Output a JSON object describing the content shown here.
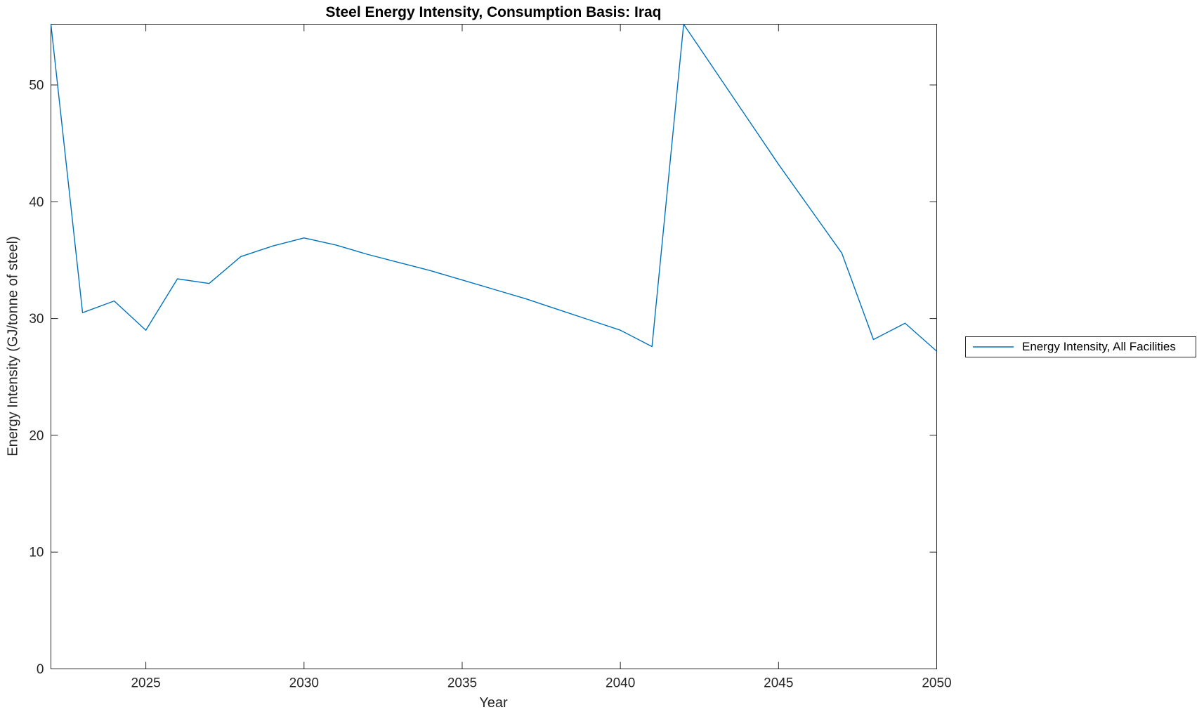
{
  "chart_data": {
    "type": "line",
    "title": "Steel Energy Intensity, Consumption Basis: Iraq",
    "xlabel": "Year",
    "ylabel": "Energy Intensity (GJ/tonne of steel)",
    "xlim": [
      2022,
      2050
    ],
    "ylim": [
      0,
      55.2
    ],
    "xticks": [
      2025,
      2030,
      2035,
      2040,
      2045,
      2050
    ],
    "yticks": [
      0,
      10,
      20,
      30,
      40,
      50
    ],
    "grid": false,
    "legend_position": "outside-right",
    "line_color": "#0072BD",
    "axis_color": "#262626",
    "x": [
      2022,
      2023,
      2024,
      2025,
      2026,
      2027,
      2028,
      2029,
      2030,
      2031,
      2032,
      2033,
      2034,
      2035,
      2036,
      2037,
      2038,
      2039,
      2040,
      2041,
      2042,
      2043,
      2044,
      2045,
      2046,
      2047,
      2048,
      2049,
      2050
    ],
    "series": [
      {
        "name": "Energy Intensity, All Facilities",
        "values": [
          55.2,
          30.5,
          31.5,
          29.0,
          33.4,
          33.0,
          35.3,
          36.2,
          36.9,
          36.3,
          35.5,
          34.8,
          34.1,
          33.3,
          32.5,
          31.7,
          30.8,
          29.9,
          29.0,
          27.6,
          55.2,
          51.2,
          47.2,
          43.2,
          39.4,
          35.6,
          28.2,
          29.6,
          27.2
        ]
      }
    ]
  }
}
